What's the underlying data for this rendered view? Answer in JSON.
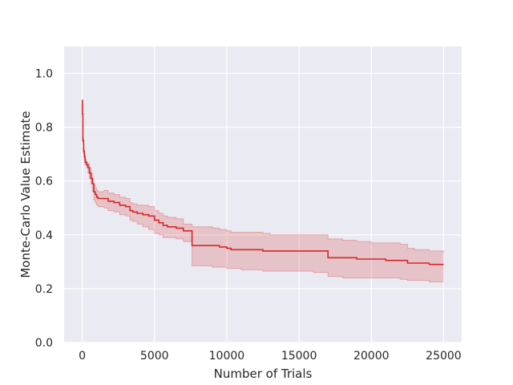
{
  "chart_data": {
    "type": "line",
    "title": "",
    "xlabel": "Number of Trials",
    "ylabel": "Monte-Carlo Value Estimate",
    "xlim": [
      -1250,
      26250
    ],
    "ylim": [
      0.0,
      1.1
    ],
    "x_ticks": [
      0,
      5000,
      10000,
      15000,
      20000,
      25000
    ],
    "x_tick_labels": [
      "0",
      "5000",
      "10000",
      "15000",
      "20000",
      "25000"
    ],
    "y_ticks": [
      0.0,
      0.2,
      0.4,
      0.6,
      0.8,
      1.0
    ],
    "y_tick_labels": [
      "0.0",
      "0.2",
      "0.4",
      "0.6",
      "0.8",
      "1.0"
    ],
    "grid": true,
    "background": "#EAEAF2",
    "line_color": "#D62728",
    "band_color": "#D62728",
    "series": [
      {
        "x": [
          0,
          20,
          50,
          100,
          150,
          200,
          300,
          400,
          500,
          600,
          700,
          800,
          900,
          1000,
          1100,
          1500,
          1800,
          2200,
          2600,
          3000,
          3300,
          3500,
          3800,
          4200,
          4600,
          5000,
          5300,
          5600,
          5900,
          6500,
          7000,
          7500,
          7600,
          9000,
          9500,
          10000,
          10300,
          11000,
          12000,
          12500,
          13000,
          14000,
          15000,
          16000,
          16900,
          17000,
          18000,
          19000,
          20000,
          21000,
          22000,
          22500,
          23000,
          24000,
          25000
        ],
        "values": [
          0.9,
          0.85,
          0.75,
          0.71,
          0.69,
          0.67,
          0.66,
          0.65,
          0.63,
          0.61,
          0.59,
          0.56,
          0.55,
          0.54,
          0.535,
          0.535,
          0.525,
          0.52,
          0.51,
          0.505,
          0.49,
          0.485,
          0.48,
          0.475,
          0.47,
          0.455,
          0.445,
          0.435,
          0.43,
          0.425,
          0.415,
          0.415,
          0.36,
          0.36,
          0.355,
          0.35,
          0.345,
          0.345,
          0.345,
          0.34,
          0.34,
          0.34,
          0.34,
          0.34,
          0.34,
          0.315,
          0.315,
          0.31,
          0.31,
          0.305,
          0.305,
          0.295,
          0.295,
          0.29,
          0.29
        ],
        "lower": [
          0.9,
          0.84,
          0.74,
          0.7,
          0.68,
          0.66,
          0.65,
          0.63,
          0.61,
          0.59,
          0.56,
          0.53,
          0.52,
          0.51,
          0.505,
          0.5,
          0.49,
          0.485,
          0.475,
          0.47,
          0.455,
          0.45,
          0.44,
          0.43,
          0.42,
          0.405,
          0.4,
          0.39,
          0.39,
          0.385,
          0.375,
          0.375,
          0.285,
          0.28,
          0.28,
          0.275,
          0.275,
          0.27,
          0.27,
          0.265,
          0.265,
          0.265,
          0.265,
          0.26,
          0.26,
          0.245,
          0.24,
          0.24,
          0.24,
          0.24,
          0.235,
          0.23,
          0.23,
          0.225,
          0.225
        ],
        "upper": [
          0.9,
          0.86,
          0.76,
          0.72,
          0.7,
          0.68,
          0.67,
          0.665,
          0.65,
          0.63,
          0.61,
          0.585,
          0.575,
          0.565,
          0.56,
          0.565,
          0.555,
          0.55,
          0.54,
          0.535,
          0.52,
          0.515,
          0.51,
          0.51,
          0.505,
          0.49,
          0.48,
          0.47,
          0.465,
          0.46,
          0.44,
          0.44,
          0.43,
          0.425,
          0.42,
          0.415,
          0.41,
          0.41,
          0.41,
          0.405,
          0.4,
          0.4,
          0.4,
          0.4,
          0.4,
          0.385,
          0.38,
          0.375,
          0.37,
          0.37,
          0.365,
          0.35,
          0.345,
          0.34,
          0.335
        ]
      }
    ]
  }
}
